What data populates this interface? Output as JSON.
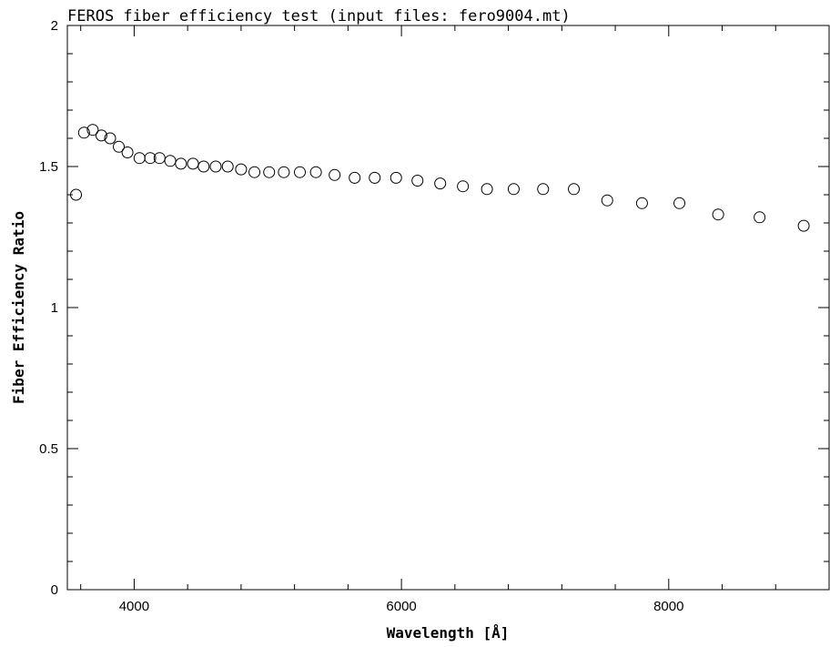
{
  "chart_data": {
    "type": "scatter",
    "title": "FEROS fiber efficiency test (input files: fero9004.mt)",
    "xlabel": "Wavelength [Å]",
    "ylabel": "Fiber Efficiency Ratio",
    "xlim": [
      3500,
      9200
    ],
    "ylim": [
      0,
      2
    ],
    "x_ticks": [
      4000,
      6000,
      8000
    ],
    "y_ticks": [
      0,
      0.5,
      1,
      1.5,
      2
    ],
    "x_tick_labels": [
      "4000",
      "6000",
      "8000"
    ],
    "y_tick_labels": [
      "0",
      "0.5",
      "1",
      "1.5",
      "2"
    ],
    "grid": false,
    "marker": "open-circle",
    "series": [
      {
        "x": [
          3565,
          3625,
          3690,
          3755,
          3820,
          3885,
          3950,
          4040,
          4120,
          4190,
          4270,
          4350,
          4440,
          4520,
          4610,
          4700,
          4800,
          4900,
          5010,
          5120,
          5240,
          5360,
          5500,
          5650,
          5800,
          5960,
          6120,
          6290,
          6460,
          6640,
          6840,
          7060,
          7290,
          7540,
          7800,
          8080,
          8370,
          8680,
          9010
        ],
        "y": [
          1.4,
          1.62,
          1.63,
          1.61,
          1.6,
          1.57,
          1.55,
          1.53,
          1.53,
          1.53,
          1.52,
          1.51,
          1.51,
          1.5,
          1.5,
          1.5,
          1.49,
          1.48,
          1.48,
          1.48,
          1.48,
          1.48,
          1.47,
          1.46,
          1.46,
          1.46,
          1.45,
          1.44,
          1.43,
          1.42,
          1.42,
          1.42,
          1.42,
          1.38,
          1.37,
          1.37,
          1.33,
          1.32,
          1.29
        ]
      }
    ]
  }
}
